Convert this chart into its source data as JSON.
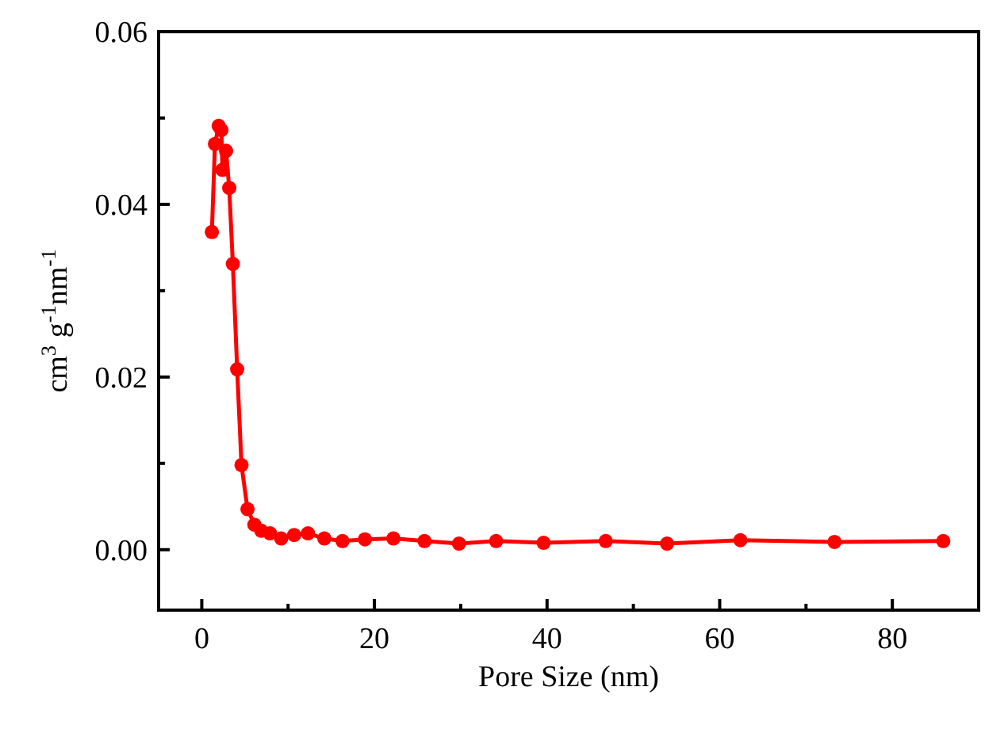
{
  "chart_data": {
    "type": "line",
    "xlabel": "Pore Size (nm)",
    "ylabel": "cm$^{3}$ g$^{-1}$nm$^{-1}$",
    "xlim": [
      -5,
      90
    ],
    "ylim": [
      -0.007,
      0.06
    ],
    "xticks": [
      0,
      {
        "value": 10,
        "label": null
      },
      20,
      {
        "value": 30,
        "label": null
      },
      40,
      {
        "value": 50,
        "label": null
      },
      60,
      {
        "value": 70,
        "label": null
      },
      80
    ],
    "yticks": [
      {
        "value": 0,
        "label": "0.00"
      },
      {
        "value": 0.01,
        "label": null
      },
      {
        "value": 0.02,
        "label": "0.02"
      },
      {
        "value": 0.03,
        "label": null
      },
      {
        "value": 0.04,
        "label": "0.04"
      },
      {
        "value": 0.05,
        "label": null
      },
      {
        "value": 0.06,
        "label": "0.06"
      }
    ],
    "marker": "circle",
    "line_style": "solid",
    "series": [
      {
        "color": "#ff0000",
        "x": [
          1.17,
          1.53,
          1.96,
          2.27,
          2.39,
          2.81,
          3.18,
          3.6,
          4.1,
          4.6,
          5.3,
          6.1,
          6.9,
          7.9,
          9.2,
          10.7,
          12.3,
          14.2,
          16.3,
          18.9,
          22.2,
          25.8,
          29.8,
          34.1,
          39.6,
          46.8,
          53.9,
          62.4,
          73.3,
          85.9
        ],
        "values": [
          0.0368,
          0.047,
          0.0491,
          0.0486,
          0.044,
          0.0462,
          0.0419,
          0.0331,
          0.0209,
          0.0098,
          0.0047,
          0.0029,
          0.0022,
          0.0019,
          0.0013,
          0.0017,
          0.0019,
          0.0013,
          0.001,
          0.0012,
          0.0013,
          0.001,
          0.0007,
          0.001,
          0.0008,
          0.001,
          0.0007,
          0.0011,
          0.0009,
          0.001
        ]
      }
    ]
  }
}
